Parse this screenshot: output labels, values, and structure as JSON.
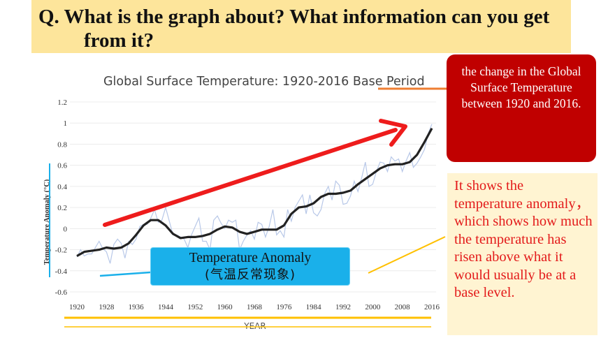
{
  "question": {
    "line1": "Q. What is the graph about? What information can you get",
    "line2": "from it?"
  },
  "callouts": {
    "red": "the change in the Global Surface Temperature between 1920 and 2016.",
    "yellow": "It shows the temperature anomaly， which shows how much the temperature has risen above what it would usually be at a base level.",
    "anomaly_en": "Temperature Anomaly",
    "anomaly_cn": "(气温反常现象)"
  },
  "colors": {
    "question_bg": "#fde59b",
    "red_callout": "#c00000",
    "yellow_callout_bg": "#fff4d2",
    "yellow_callout_text": "#e31b1b",
    "anomaly_box": "#1ab0ea",
    "trend_arrow": "#ee1c1c",
    "smoothed_line": "#222222",
    "raw_line": "#b8c8e8",
    "connector_orange": "#ee7d31",
    "connector_yellow": "#ffc000",
    "connector_blue": "#1ab0ea"
  },
  "chart_data": {
    "type": "line",
    "title": "Global Surface Temperature: 1920-2016 Base Period",
    "xlabel": "YEAR",
    "ylabel": "Temperature Anomaly (°C)",
    "xlim": [
      1920,
      2016
    ],
    "ylim": [
      -0.6,
      1.2
    ],
    "x_ticks": [
      "1920",
      "1928",
      "1936",
      "1944",
      "1952",
      "1960",
      "1968",
      "1976",
      "1984",
      "1992",
      "2000",
      "2008",
      "2016"
    ],
    "y_ticks": [
      "1.2",
      "1",
      "0.8",
      "0.6",
      "0.4",
      "0.2",
      "0",
      "-0.2",
      "-0.4",
      "-0.6"
    ],
    "grid": true,
    "series": [
      {
        "style": "smoothed",
        "x": [
          1920,
          1922,
          1924,
          1926,
          1928,
          1930,
          1932,
          1934,
          1936,
          1938,
          1940,
          1942,
          1944,
          1946,
          1948,
          1950,
          1952,
          1954,
          1956,
          1958,
          1960,
          1962,
          1964,
          1966,
          1968,
          1970,
          1972,
          1974,
          1976,
          1978,
          1980,
          1982,
          1984,
          1986,
          1988,
          1990,
          1992,
          1994,
          1996,
          1998,
          2000,
          2002,
          2004,
          2006,
          2008,
          2010,
          2012,
          2014,
          2016
        ],
        "y": [
          -0.26,
          -0.22,
          -0.21,
          -0.2,
          -0.18,
          -0.19,
          -0.18,
          -0.14,
          -0.06,
          0.03,
          0.08,
          0.08,
          0.03,
          -0.05,
          -0.09,
          -0.08,
          -0.08,
          -0.07,
          -0.05,
          -0.01,
          0.02,
          0.01,
          -0.03,
          -0.05,
          -0.03,
          -0.01,
          -0.01,
          -0.01,
          0.03,
          0.14,
          0.2,
          0.21,
          0.24,
          0.3,
          0.33,
          0.33,
          0.34,
          0.36,
          0.42,
          0.47,
          0.52,
          0.57,
          0.6,
          0.61,
          0.61,
          0.63,
          0.7,
          0.82,
          0.95
        ]
      },
      {
        "style": "raw",
        "x": [
          1920,
          1921,
          1922,
          1923,
          1924,
          1925,
          1926,
          1927,
          1928,
          1929,
          1930,
          1931,
          1932,
          1933,
          1934,
          1935,
          1936,
          1937,
          1938,
          1939,
          1940,
          1941,
          1942,
          1943,
          1944,
          1945,
          1946,
          1947,
          1948,
          1949,
          1950,
          1951,
          1952,
          1953,
          1954,
          1955,
          1956,
          1957,
          1958,
          1959,
          1960,
          1961,
          1962,
          1963,
          1964,
          1965,
          1966,
          1967,
          1968,
          1969,
          1970,
          1971,
          1972,
          1973,
          1974,
          1975,
          1976,
          1977,
          1978,
          1979,
          1980,
          1981,
          1982,
          1983,
          1984,
          1985,
          1986,
          1987,
          1988,
          1989,
          1990,
          1991,
          1992,
          1993,
          1994,
          1995,
          1996,
          1997,
          1998,
          1999,
          2000,
          2001,
          2002,
          2003,
          2004,
          2005,
          2006,
          2007,
          2008,
          2009,
          2010,
          2011,
          2012,
          2013,
          2014,
          2015,
          2016
        ],
        "y": [
          -0.27,
          -0.2,
          -0.26,
          -0.24,
          -0.24,
          -0.18,
          -0.12,
          -0.19,
          -0.22,
          -0.33,
          -0.15,
          -0.1,
          -0.14,
          -0.28,
          -0.12,
          -0.15,
          -0.1,
          0.02,
          0.04,
          0.04,
          0.1,
          0.18,
          0.06,
          0.08,
          0.2,
          0.07,
          -0.06,
          -0.06,
          -0.08,
          -0.1,
          -0.18,
          -0.06,
          0.02,
          0.1,
          -0.12,
          -0.12,
          -0.2,
          0.08,
          0.12,
          0.05,
          0.0,
          0.08,
          0.06,
          0.08,
          -0.2,
          -0.12,
          -0.06,
          -0.02,
          -0.1,
          0.06,
          0.04,
          -0.08,
          0.02,
          0.18,
          -0.06,
          -0.02,
          -0.08,
          0.18,
          0.07,
          0.2,
          0.26,
          0.32,
          0.14,
          0.32,
          0.15,
          0.12,
          0.18,
          0.33,
          0.4,
          0.27,
          0.45,
          0.41,
          0.23,
          0.24,
          0.31,
          0.45,
          0.35,
          0.48,
          0.63,
          0.4,
          0.42,
          0.54,
          0.63,
          0.62,
          0.54,
          0.68,
          0.64,
          0.66,
          0.54,
          0.64,
          0.72,
          0.58,
          0.62,
          0.68,
          0.75,
          0.9,
          0.99
        ]
      }
    ]
  }
}
